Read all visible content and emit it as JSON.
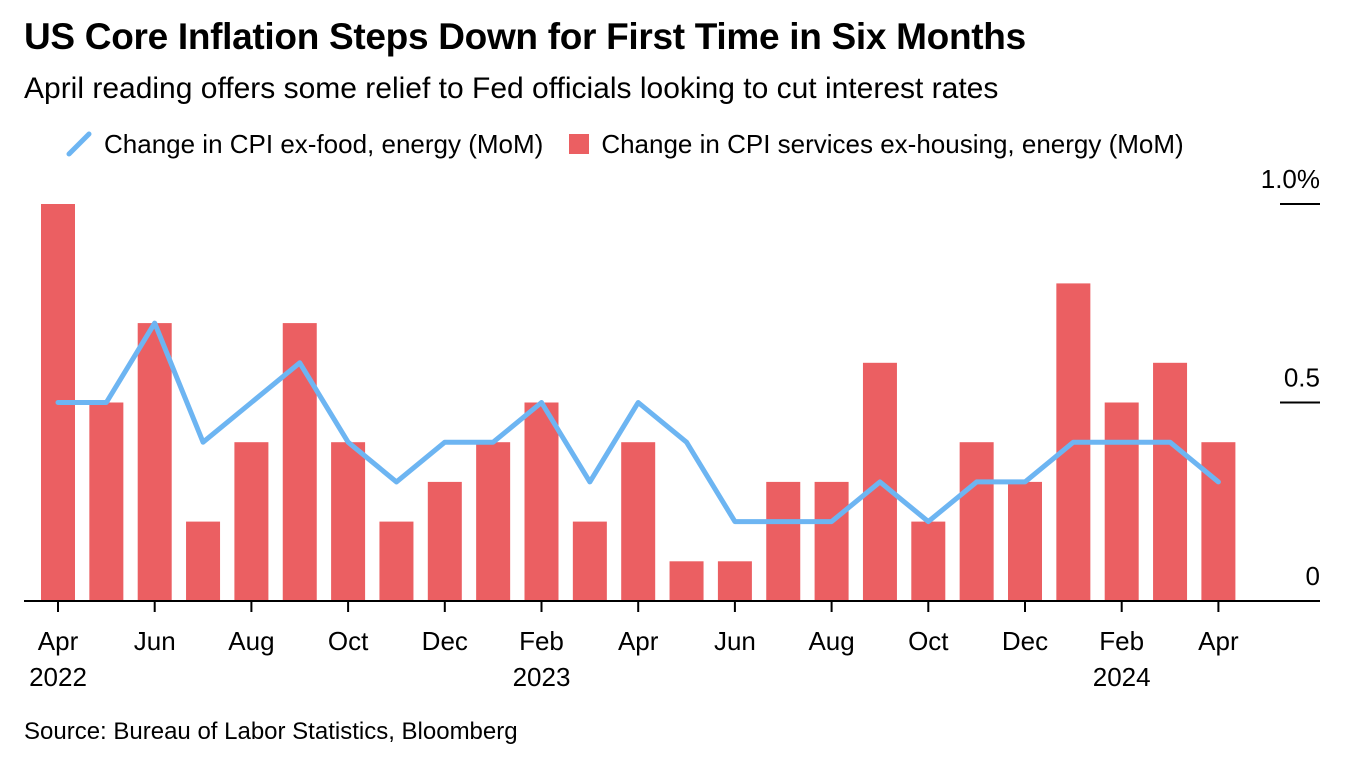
{
  "title": "US Core Inflation Steps Down for First Time in Six Months",
  "subtitle": "April reading offers some relief to Fed officials looking to cut interest rates",
  "source": "Source: Bureau of Labor Statistics, Bloomberg",
  "colors": {
    "line": "#6db5f2",
    "bars": "#eb5f62",
    "axis": "#000000"
  },
  "legend": {
    "line_label": "Change in CPI ex-food, energy (MoM)",
    "bar_label": "Change in CPI services ex-housing, energy (MoM)"
  },
  "chart_data": {
    "type": "bar",
    "categories": [
      "2022-04",
      "2022-05",
      "2022-06",
      "2022-07",
      "2022-08",
      "2022-09",
      "2022-10",
      "2022-11",
      "2022-12",
      "2023-01",
      "2023-02",
      "2023-03",
      "2023-04",
      "2023-05",
      "2023-06",
      "2023-07",
      "2023-08",
      "2023-09",
      "2023-10",
      "2023-11",
      "2023-12",
      "2024-01",
      "2024-02",
      "2024-03",
      "2024-04"
    ],
    "series": [
      {
        "name": "Change in CPI services ex-housing, energy (MoM)",
        "kind": "bar",
        "values": [
          1.0,
          0.5,
          0.7,
          0.2,
          0.4,
          0.7,
          0.4,
          0.2,
          0.3,
          0.4,
          0.5,
          0.2,
          0.4,
          0.1,
          0.1,
          0.3,
          0.3,
          0.6,
          0.2,
          0.4,
          0.3,
          0.8,
          0.5,
          0.6,
          0.4
        ]
      },
      {
        "name": "Change in CPI ex-food, energy (MoM)",
        "kind": "line",
        "values": [
          0.5,
          0.5,
          0.7,
          0.4,
          0.5,
          0.6,
          0.4,
          0.3,
          0.4,
          0.4,
          0.5,
          0.3,
          0.5,
          0.4,
          0.2,
          0.2,
          0.2,
          0.3,
          0.2,
          0.3,
          0.3,
          0.4,
          0.4,
          0.4,
          0.3
        ]
      }
    ],
    "ylim": [
      0,
      1.0
    ],
    "y_ticks": [
      {
        "value": 0,
        "label": "0"
      },
      {
        "value": 0.5,
        "label": "0.5"
      },
      {
        "value": 1.0,
        "label": "1.0%"
      }
    ],
    "x_ticks": [
      {
        "index": 0,
        "label": "Apr",
        "year": "2022"
      },
      {
        "index": 2,
        "label": "Jun",
        "year": ""
      },
      {
        "index": 4,
        "label": "Aug",
        "year": ""
      },
      {
        "index": 6,
        "label": "Oct",
        "year": ""
      },
      {
        "index": 8,
        "label": "Dec",
        "year": ""
      },
      {
        "index": 10,
        "label": "Feb",
        "year": "2023"
      },
      {
        "index": 12,
        "label": "Apr",
        "year": ""
      },
      {
        "index": 14,
        "label": "Jun",
        "year": ""
      },
      {
        "index": 16,
        "label": "Aug",
        "year": ""
      },
      {
        "index": 18,
        "label": "Oct",
        "year": ""
      },
      {
        "index": 20,
        "label": "Dec",
        "year": ""
      },
      {
        "index": 22,
        "label": "Feb",
        "year": "2024"
      },
      {
        "index": 24,
        "label": "Apr",
        "year": ""
      }
    ],
    "grid": false,
    "legend_position": "top-left",
    "y_axis_side": "right"
  }
}
